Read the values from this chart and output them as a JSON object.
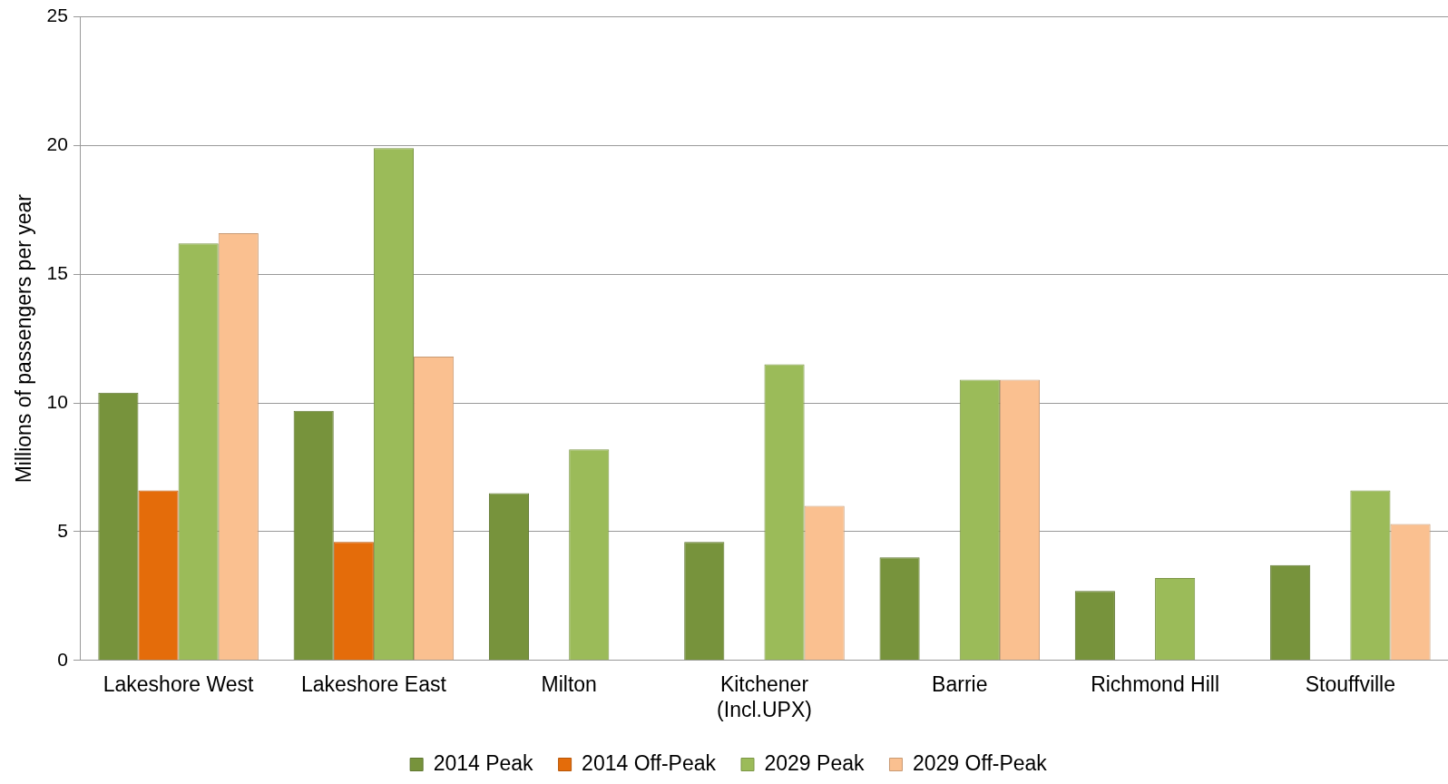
{
  "chart_data": {
    "type": "bar",
    "ylabel": "Millions of passengers per year",
    "categories": [
      "Lakeshore West",
      "Lakeshore East",
      "Milton",
      "Kitchener\n(Incl.UPX)",
      "Barrie",
      "Richmond Hill",
      "Stouffville"
    ],
    "series": [
      {
        "name": "2014 Peak",
        "color": "#77933c",
        "values": [
          10.4,
          9.7,
          6.5,
          4.6,
          4.0,
          2.7,
          3.7
        ]
      },
      {
        "name": "2014 Off-Peak",
        "color": "#e46c0a",
        "values": [
          6.6,
          4.6,
          null,
          null,
          null,
          null,
          null
        ]
      },
      {
        "name": "2029 Peak",
        "color": "#9bbb59",
        "values": [
          16.2,
          19.9,
          8.2,
          11.5,
          10.9,
          3.2,
          6.6
        ]
      },
      {
        "name": "2029 Off-Peak",
        "color": "#fac090",
        "values": [
          16.6,
          11.8,
          null,
          6.0,
          10.9,
          null,
          5.3
        ]
      }
    ],
    "ylim": [
      0,
      25
    ],
    "yticks": [
      0,
      5,
      10,
      15,
      20,
      25
    ],
    "grid": "y",
    "legend": "bottom"
  }
}
